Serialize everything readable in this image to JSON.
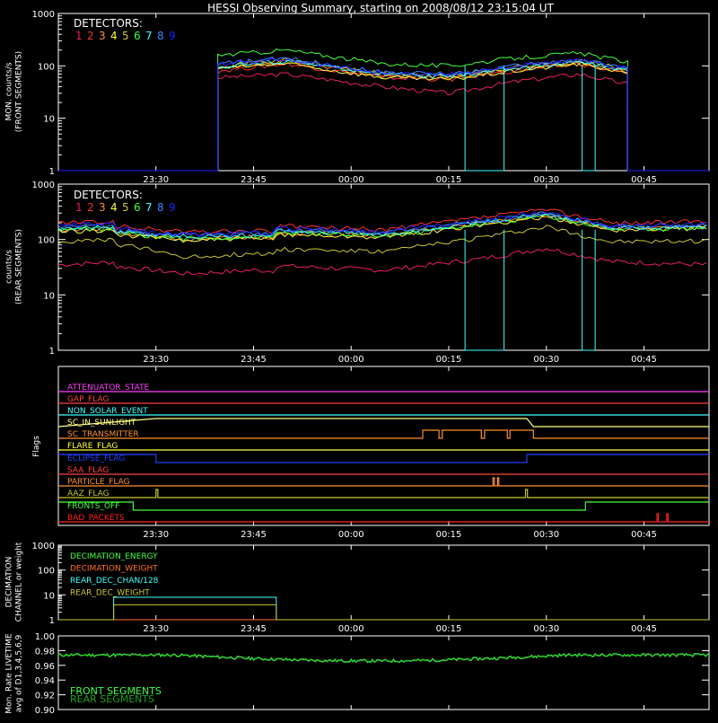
{
  "title": "HESSI Observing Summary, starting on 2008/08/12 23:15:04 UT",
  "colors": {
    "bg": "#000000",
    "axes": "#ffffff",
    "detectors": [
      "#e8205a",
      "#ff3030",
      "#ff9030",
      "#ffff40",
      "#c8c832",
      "#40ff40",
      "#40ffff",
      "#4080ff",
      "#2020ff"
    ]
  },
  "chart_data": [
    {
      "type": "line",
      "panel": "front",
      "ylabel": [
        "MON. counts/s",
        "(FRONT SEGMENTS)"
      ],
      "legend_title": "DETECTORS:",
      "legend_numbers": [
        "1",
        "2",
        "3",
        "4",
        "5",
        "6",
        "7",
        "8",
        "9"
      ],
      "ylog": true,
      "ylim": [
        1,
        1000
      ],
      "yticks": [
        "1",
        "10",
        "100",
        "1000"
      ],
      "xticks": [
        "23:30",
        "23:45",
        "00:00",
        "00:15",
        "00:30",
        "00:45"
      ],
      "data_start_min": 24.5,
      "data_end_min": 87.5,
      "series": [
        {
          "values_at": [
            [
              24.5,
              60
            ],
            [
              35,
              70
            ],
            [
              50,
              40
            ],
            [
              60,
              30
            ],
            [
              70,
              50
            ],
            [
              80,
              70
            ],
            [
              87.5,
              45
            ]
          ]
        },
        {
          "values_at": [
            [
              24.5,
              80
            ],
            [
              35,
              110
            ],
            [
              50,
              60
            ],
            [
              60,
              55
            ],
            [
              70,
              80
            ],
            [
              80,
              110
            ],
            [
              87.5,
              70
            ]
          ]
        },
        {
          "values_at": [
            [
              24.5,
              85
            ],
            [
              35,
              120
            ],
            [
              50,
              65
            ],
            [
              60,
              60
            ],
            [
              70,
              85
            ],
            [
              80,
              115
            ],
            [
              87.5,
              75
            ]
          ]
        },
        {
          "values_at": [
            [
              24.5,
              90
            ],
            [
              35,
              110
            ],
            [
              50,
              60
            ],
            [
              60,
              55
            ],
            [
              70,
              80
            ],
            [
              80,
              110
            ],
            [
              87.5,
              75
            ]
          ]
        },
        {
          "values_at": [
            [
              24.5,
              100
            ],
            [
              35,
              130
            ],
            [
              50,
              70
            ],
            [
              60,
              65
            ],
            [
              70,
              95
            ],
            [
              80,
              125
            ],
            [
              87.5,
              85
            ]
          ]
        },
        {
          "values_at": [
            [
              24.5,
              160
            ],
            [
              35,
              200
            ],
            [
              50,
              110
            ],
            [
              60,
              100
            ],
            [
              70,
              140
            ],
            [
              80,
              175
            ],
            [
              87.5,
              120
            ]
          ]
        },
        {
          "values_at": [
            [
              24.5,
              95
            ],
            [
              35,
              125
            ],
            [
              50,
              70
            ],
            [
              60,
              62
            ],
            [
              70,
              90
            ],
            [
              80,
              120
            ],
            [
              87.5,
              80
            ]
          ]
        },
        {
          "values_at": [
            [
              24.5,
              110
            ],
            [
              35,
              140
            ],
            [
              50,
              75
            ],
            [
              60,
              70
            ],
            [
              70,
              100
            ],
            [
              80,
              130
            ],
            [
              87.5,
              90
            ]
          ]
        },
        {
          "values_at": [
            [
              24.5,
              105
            ],
            [
              35,
              135
            ],
            [
              50,
              72
            ],
            [
              60,
              68
            ],
            [
              70,
              98
            ],
            [
              80,
              128
            ],
            [
              87.5,
              88
            ]
          ]
        }
      ]
    },
    {
      "type": "line",
      "panel": "rear",
      "ylabel": [
        "counts/s",
        "(REAR SEGMENTS)"
      ],
      "legend_title": "DETECTORS:",
      "legend_numbers": [
        "1",
        "2",
        "3",
        "4",
        "5",
        "6",
        "7",
        "8",
        "9"
      ],
      "ylog": true,
      "ylim": [
        1,
        1000
      ],
      "yticks": [
        "1",
        "10",
        "100",
        "1000"
      ],
      "xticks": [
        "23:30",
        "23:45",
        "00:00",
        "00:15",
        "00:30",
        "00:45"
      ],
      "series": [
        {
          "values_at": [
            [
              0,
              35
            ],
            [
              10,
              40
            ],
            [
              20,
              30
            ],
            [
              30,
              35
            ],
            [
              50,
              28
            ],
            [
              65,
              45
            ],
            [
              75,
              70
            ],
            [
              85,
              40
            ],
            [
              100,
              35
            ]
          ]
        },
        {
          "values_at": [
            [
              0,
              200
            ],
            [
              10,
              210
            ],
            [
              20,
              170
            ],
            [
              30,
              180
            ],
            [
              50,
              150
            ],
            [
              65,
              250
            ],
            [
              75,
              350
            ],
            [
              85,
              200
            ],
            [
              100,
              210
            ]
          ]
        },
        {
          "values_at": [
            [
              0,
              150
            ],
            [
              10,
              160
            ],
            [
              20,
              130
            ],
            [
              30,
              140
            ],
            [
              50,
              120
            ],
            [
              65,
              200
            ],
            [
              75,
              280
            ],
            [
              85,
              160
            ],
            [
              100,
              170
            ]
          ]
        },
        {
          "values_at": [
            [
              0,
              140
            ],
            [
              10,
              150
            ],
            [
              20,
              120
            ],
            [
              30,
              130
            ],
            [
              50,
              110
            ],
            [
              65,
              180
            ],
            [
              75,
              260
            ],
            [
              85,
              150
            ],
            [
              100,
              160
            ]
          ]
        },
        {
          "values_at": [
            [
              0,
              90
            ],
            [
              10,
              100
            ],
            [
              20,
              60
            ],
            [
              30,
              70
            ],
            [
              50,
              60
            ],
            [
              65,
              110
            ],
            [
              75,
              170
            ],
            [
              85,
              90
            ],
            [
              100,
              95
            ]
          ]
        },
        {
          "values_at": [
            [
              0,
              150
            ],
            [
              10,
              160
            ],
            [
              20,
              130
            ],
            [
              30,
              140
            ],
            [
              50,
              115
            ],
            [
              65,
              190
            ],
            [
              75,
              270
            ],
            [
              85,
              155
            ],
            [
              100,
              165
            ]
          ]
        },
        {
          "values_at": [
            [
              0,
              160
            ],
            [
              10,
              170
            ],
            [
              20,
              140
            ],
            [
              30,
              150
            ],
            [
              50,
              125
            ],
            [
              65,
              200
            ],
            [
              75,
              290
            ],
            [
              85,
              165
            ],
            [
              100,
              175
            ]
          ]
        },
        {
          "values_at": [
            [
              0,
              170
            ],
            [
              10,
              180
            ],
            [
              20,
              150
            ],
            [
              30,
              160
            ],
            [
              50,
              135
            ],
            [
              65,
              210
            ],
            [
              75,
              300
            ],
            [
              85,
              170
            ],
            [
              100,
              180
            ]
          ]
        },
        {
          "values_at": [
            [
              0,
              180
            ],
            [
              10,
              190
            ],
            [
              20,
              155
            ],
            [
              30,
              165
            ],
            [
              50,
              140
            ],
            [
              65,
              220
            ],
            [
              75,
              310
            ],
            [
              85,
              180
            ],
            [
              100,
              190
            ]
          ]
        }
      ]
    },
    {
      "type": "flags",
      "ylabel": "Flags",
      "xticks": [
        "23:30",
        "23:45",
        "00:00",
        "00:15",
        "00:30",
        "00:45"
      ],
      "flags": [
        {
          "name": "ATTENUATOR_STATE",
          "color": "#ff40ff"
        },
        {
          "name": "GAP_FLAG",
          "color": "#ff4040"
        },
        {
          "name": "NON_SOLAR_EVENT",
          "color": "#40ffff"
        },
        {
          "name": "SC_IN_SUNLIGHT",
          "color": "#ffff80"
        },
        {
          "name": "SC_TRANSMITTER",
          "color": "#ff9030"
        },
        {
          "name": "FLARE_FLAG",
          "color": "#ffff40"
        },
        {
          "name": "ECLIPSE_FLAG",
          "color": "#2040ff"
        },
        {
          "name": "SAA_FLAG",
          "color": "#ff4040"
        },
        {
          "name": "PARTICLE_FLAG",
          "color": "#ff9030"
        },
        {
          "name": "AAZ_FLAG",
          "color": "#c8c832"
        },
        {
          "name": "FRONTS_OFF",
          "color": "#40ff40"
        },
        {
          "name": "BAD_PACKETS",
          "color": "#ff2020"
        }
      ]
    },
    {
      "type": "line",
      "panel": "decimation",
      "ylabel": [
        "DECIMATION",
        "CHANNEL or weight"
      ],
      "ylog": true,
      "ylim": [
        1,
        1000
      ],
      "yticks": [
        "1",
        "10",
        "100",
        "1000"
      ],
      "xticks": [
        "23:30",
        "23:45",
        "00:00",
        "00:15",
        "00:30",
        "00:45"
      ],
      "legend": [
        {
          "label": "DECIMATION_ENERGY",
          "color": "#40ff40"
        },
        {
          "label": "DECIMATION_WEIGHT",
          "color": "#ff7030"
        },
        {
          "label": "REAR_DEC_CHAN/128",
          "color": "#40ffff"
        },
        {
          "label": "REAR_DEC_WEIGHT",
          "color": "#c8c832"
        }
      ]
    },
    {
      "type": "line",
      "panel": "livetime",
      "ylabel": [
        "Mon. Rate LIVETIME",
        "avg of D1,3,4,5,6,9"
      ],
      "ylim": [
        0.9,
        1.0
      ],
      "yticks": [
        "0.90",
        "0.92",
        "0.94",
        "0.96",
        "0.98",
        "1.00"
      ],
      "legend": [
        {
          "label": "FRONT SEGMENTS",
          "color": "#40ff40"
        },
        {
          "label": "REAR SEGMENTS",
          "color": "#20a020"
        }
      ]
    }
  ]
}
